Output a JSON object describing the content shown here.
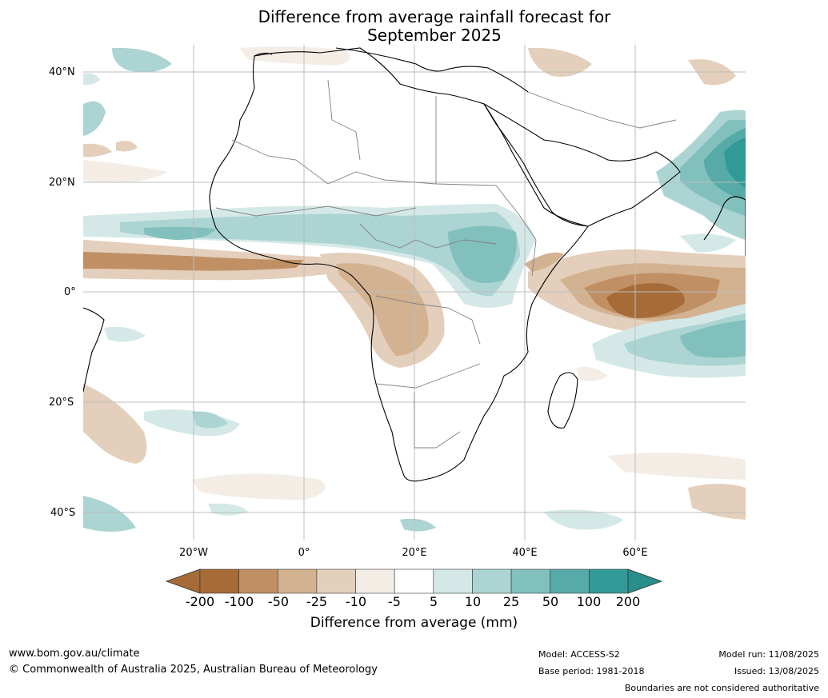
{
  "title": {
    "line1": "Difference from average rainfall forecast for",
    "line2": "September 2025"
  },
  "map": {
    "region": "Africa and surrounding oceans",
    "lat_labels": [
      "40°N",
      "20°N",
      "0°",
      "20°S",
      "40°S"
    ],
    "lon_labels": [
      "20°W",
      "0°",
      "20°E",
      "40°E",
      "60°E"
    ]
  },
  "legend": {
    "title": "Difference from average (mm)",
    "ticks": [
      "-200",
      "-100",
      "-50",
      "-25",
      "-10",
      "-5",
      "5",
      "10",
      "25",
      "50",
      "100",
      "200"
    ],
    "colors": [
      "#a66b37",
      "#c09064",
      "#d3b291",
      "#e3cfbb",
      "#f3ede6",
      "#ffffff",
      "#d4e9e7",
      "#abd4d2",
      "#82c0be",
      "#56aaa7",
      "#319a96"
    ],
    "extend_low_color": "#a66b37",
    "extend_high_color": "#2a8e8a"
  },
  "footer": {
    "website": "www.bom.gov.au/climate",
    "copyright": "© Commonwealth of Australia 2025, Australian Bureau of Meteorology",
    "model": "Model: ACCESS-S2",
    "base_period": "Base period: 1981-2018",
    "model_run": "Model run: 11/08/2025",
    "issued": "Issued: 13/08/2025",
    "disclaimer": "Boundaries are not considered authoritative"
  }
}
